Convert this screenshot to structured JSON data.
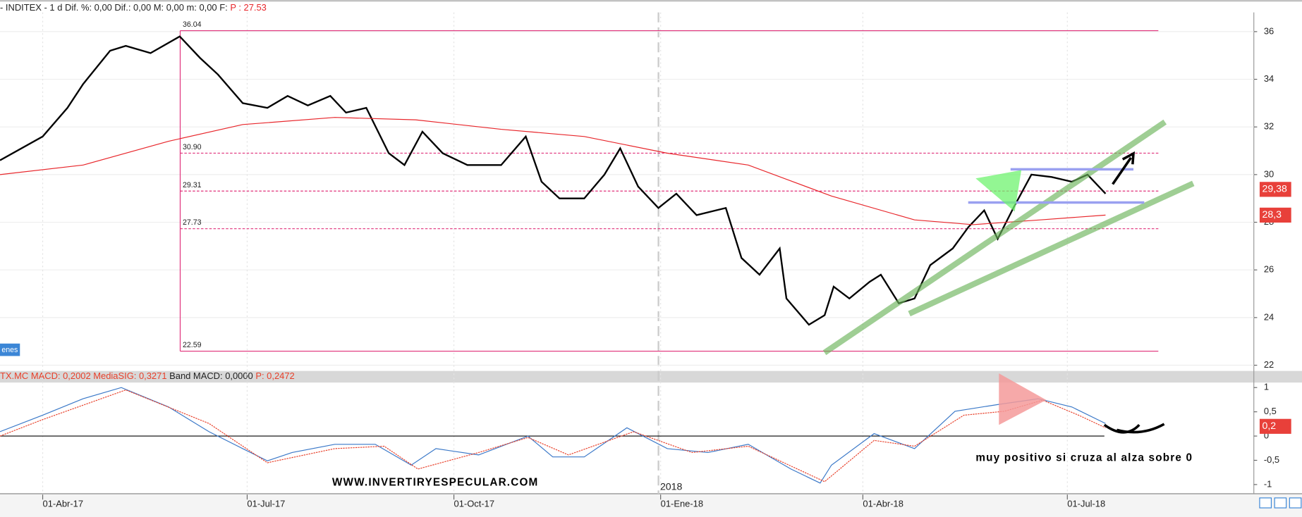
{
  "chart_data": [
    {
      "type": "line",
      "title_parts": [
        "- INDITEX -  1 d Dif. %: 0,00 Dif.: 0,00 M: 0,00 m: 0,00 F:",
        "P : 27.53"
      ],
      "button": "enes",
      "xlim": [
        "2017-03-13",
        "2018-09-22"
      ],
      "xticks": [
        {
          "value": "2017-04-01",
          "label": "01-Abr-17"
        },
        {
          "value": "2017-07-01",
          "label": "01-Jul-17"
        },
        {
          "value": "2017-10-01",
          "label": "01-Oct-17"
        },
        {
          "value": "2018-01-01",
          "label": "01-Ene-18"
        },
        {
          "value": "2018-04-01",
          "label": "01-Abr-18"
        },
        {
          "value": "2018-07-01",
          "label": "01-Jul-18"
        }
      ],
      "ylim": [
        21.76,
        36.77
      ],
      "yticks": [
        22,
        24,
        26,
        28,
        30,
        32,
        34,
        36
      ],
      "grid": true,
      "levels": [
        36.04,
        {
          "value": 30.9,
          "label": "30.90"
        },
        29.31,
        27.73,
        22.59
      ],
      "level_color": "#e0307a",
      "series": [
        {
          "color": "#000000",
          "x": [
            "2017-03-13",
            "2017-04-01",
            "2017-04-12",
            "2017-04-19",
            "2017-05-01",
            "2017-05-08",
            "2017-05-19",
            "2017-06-01",
            "2017-06-10",
            "2017-06-18",
            "2017-06-29",
            "2017-07-10",
            "2017-07-19",
            "2017-07-28",
            "2017-08-07",
            "2017-08-14",
            "2017-08-23",
            "2017-09-02",
            "2017-09-09",
            "2017-09-17",
            "2017-09-26",
            "2017-10-07",
            "2017-10-22",
            "2017-11-02",
            "2017-11-09",
            "2017-11-17",
            "2017-11-28",
            "2017-12-07",
            "2017-12-14",
            "2017-12-22",
            "2017-12-31",
            "2018-01-08",
            "2018-01-17",
            "2018-01-30",
            "2018-02-06",
            "2018-02-14",
            "2018-02-23",
            "2018-02-26",
            "2018-03-08",
            "2018-03-15",
            "2018-03-19",
            "2018-03-26",
            "2018-04-04",
            "2018-04-09",
            "2018-04-17",
            "2018-04-24",
            "2018-05-01",
            "2018-05-11",
            "2018-05-18",
            "2018-05-25",
            "2018-05-31",
            "2018-06-07",
            "2018-06-15",
            "2018-06-24",
            "2018-07-03",
            "2018-07-10",
            "2018-07-18"
          ],
          "values": [
            30.6,
            31.6,
            32.8,
            33.8,
            35.2,
            35.4,
            35.1,
            35.8,
            34.9,
            34.2,
            33.0,
            32.8,
            33.3,
            32.9,
            33.3,
            32.6,
            32.8,
            30.9,
            30.4,
            31.8,
            30.9,
            30.4,
            30.4,
            31.6,
            29.7,
            29.0,
            29.0,
            30.0,
            31.1,
            29.5,
            28.6,
            29.2,
            28.3,
            28.6,
            26.5,
            25.8,
            26.9,
            24.8,
            23.7,
            24.1,
            25.3,
            24.8,
            25.5,
            25.8,
            24.6,
            24.8,
            26.2,
            26.9,
            27.8,
            28.5,
            27.3,
            28.6,
            30.0,
            29.9,
            29.7,
            30.0,
            29.2
          ]
        },
        {
          "color": "#e8262b",
          "x": [
            "2017-03-13",
            "2017-04-19",
            "2017-05-27",
            "2017-06-29",
            "2017-08-09",
            "2017-09-14",
            "2017-10-22",
            "2017-11-28",
            "2018-01-04",
            "2018-02-09",
            "2018-03-18",
            "2018-04-24",
            "2018-05-20",
            "2018-06-19",
            "2018-07-18"
          ],
          "values": [
            30.0,
            30.4,
            31.4,
            32.1,
            32.4,
            32.3,
            31.9,
            31.6,
            30.9,
            30.4,
            29.1,
            28.1,
            27.9,
            28.1,
            28.3
          ]
        }
      ],
      "last_values": [
        {
          "value": 29.38,
          "label": "29,38"
        },
        {
          "value": 28.3,
          "label": "28,3"
        }
      ],
      "last_color": "#e8403a"
    },
    {
      "type": "line",
      "title_parts": [
        "TX.MC MACD: 0,2002",
        "MediaSIG: 0,3271",
        "Band MACD: 0,0000",
        "P: 0,2472"
      ],
      "xlim": [
        "2017-03-13",
        "2018-09-22"
      ],
      "ylim": [
        -1.19,
        1.12
      ],
      "yticks": [
        1,
        {
          "value": 0.5,
          "label": "0,5"
        },
        0,
        {
          "value": -0.5,
          "label": "-0,5"
        },
        -1
      ],
      "series": [
        {
          "color": "#3a78c8",
          "x": [
            "2017-03-13",
            "2017-04-01",
            "2017-04-19",
            "2017-05-06",
            "2017-05-27",
            "2017-06-14",
            "2017-06-29",
            "2017-07-10",
            "2017-07-21",
            "2017-08-09",
            "2017-08-27",
            "2017-09-12",
            "2017-09-23",
            "2017-10-12",
            "2017-11-03",
            "2017-11-14",
            "2017-11-28",
            "2017-12-17",
            "2018-01-04",
            "2018-01-22",
            "2018-02-09",
            "2018-02-28",
            "2018-03-13",
            "2018-03-18",
            "2018-04-06",
            "2018-04-24",
            "2018-05-12",
            "2018-05-31",
            "2018-06-18",
            "2018-07-03",
            "2018-07-18"
          ],
          "values": [
            0.09,
            0.43,
            0.77,
            1.0,
            0.6,
            0.09,
            -0.26,
            -0.51,
            -0.34,
            -0.17,
            -0.17,
            -0.6,
            -0.26,
            -0.39,
            0,
            -0.43,
            -0.43,
            0.17,
            -0.26,
            -0.34,
            -0.17,
            -0.68,
            -0.97,
            -0.6,
            0.05,
            -0.26,
            0.51,
            0.65,
            0.77,
            0.6,
            0.26
          ]
        },
        {
          "color": "#e8402a",
          "x": [
            "2017-03-13",
            "2017-04-01",
            "2017-05-08",
            "2017-06-14",
            "2017-07-10",
            "2017-08-09",
            "2017-08-31",
            "2017-09-15",
            "2017-10-12",
            "2017-11-03",
            "2017-11-21",
            "2017-12-20",
            "2018-01-15",
            "2018-02-09",
            "2018-03-15",
            "2018-04-06",
            "2018-04-24",
            "2018-05-16",
            "2018-06-03",
            "2018-06-20",
            "2018-07-06",
            "2018-07-18"
          ],
          "values": [
            0,
            0.34,
            0.95,
            0.26,
            -0.55,
            -0.26,
            -0.21,
            -0.68,
            -0.34,
            -0.03,
            -0.39,
            0.09,
            -0.34,
            -0.21,
            -0.94,
            -0.09,
            -0.21,
            0.43,
            0.51,
            0.74,
            0.43,
            0.17
          ]
        }
      ],
      "last_values": [
        {
          "value": 0.2,
          "label": "0,2"
        }
      ],
      "last_color": "#e8403a",
      "year_label": "2018",
      "watermark": "WWW.INVERTIRYESPECULAR.COM",
      "note": "muy positivo si cruza al alza sobre 0"
    }
  ]
}
